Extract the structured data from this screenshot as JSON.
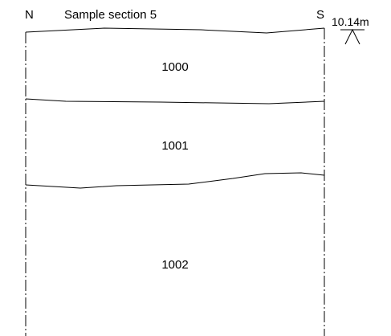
{
  "header": {
    "north_label": "N",
    "title": "Sample section 5",
    "south_label": "S"
  },
  "datum": {
    "level_label": "10.14m"
  },
  "layers": [
    {
      "id_label": "1000"
    },
    {
      "id_label": "1001"
    },
    {
      "id_label": "1002"
    }
  ],
  "colors": {
    "line": "#000000",
    "background": "#ffffff"
  }
}
